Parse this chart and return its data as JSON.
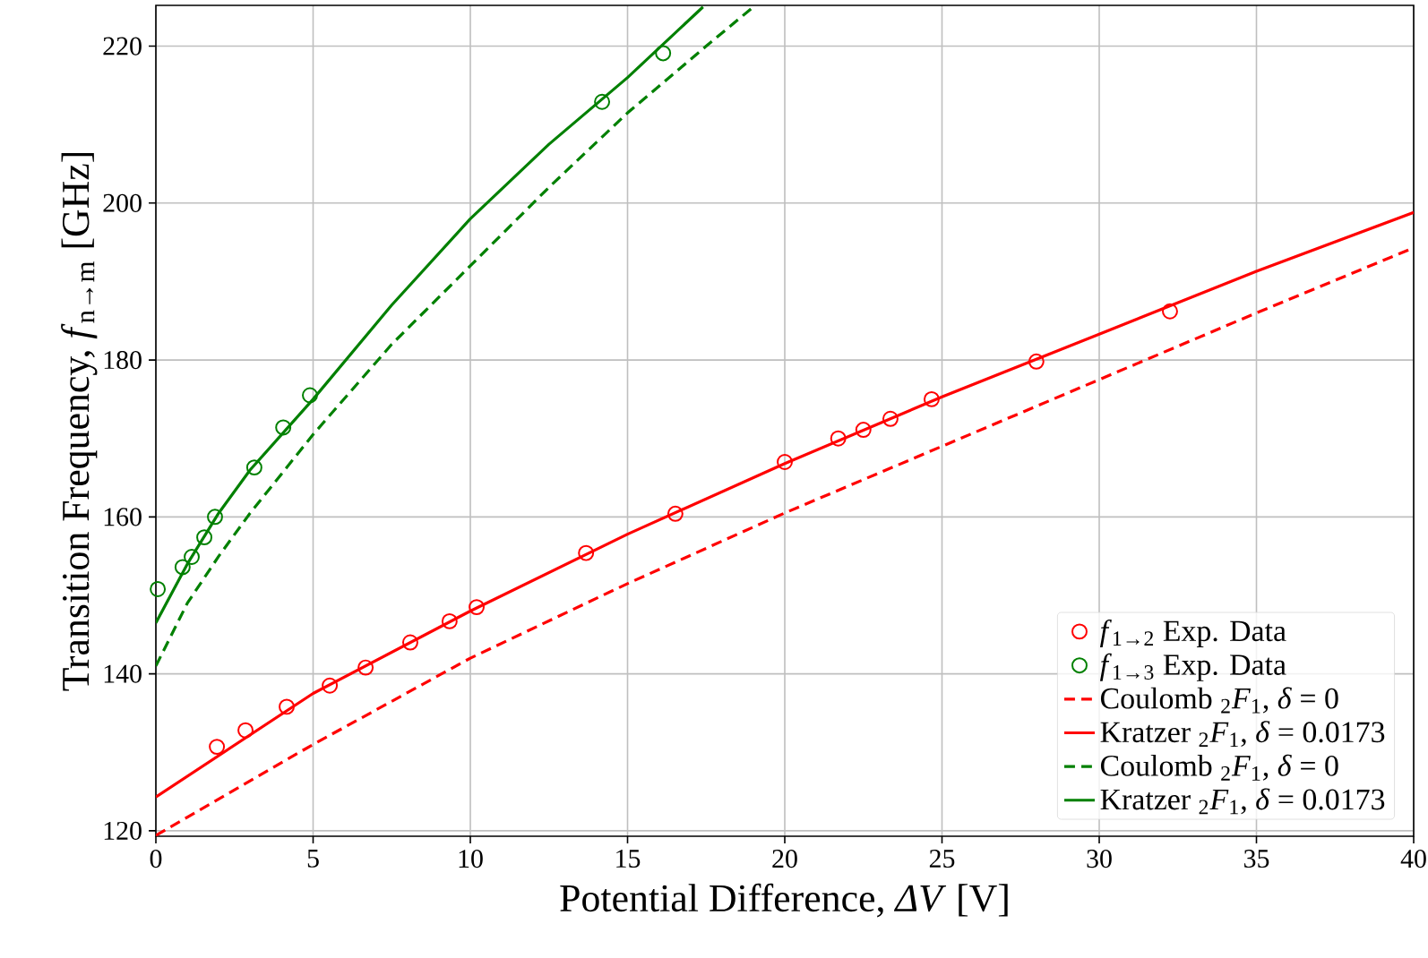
{
  "chart_data": {
    "type": "line",
    "xlabel": "Potential Difference, *ΔV* [V]",
    "ylabel": "Transition Frequency, *f*$_{n→m}$ [GHz]",
    "xlim": [
      0,
      40
    ],
    "ylim": [
      119.3,
      225.2
    ],
    "xticks": [
      0,
      5,
      10,
      15,
      20,
      25,
      30,
      35,
      40
    ],
    "yticks": [
      120,
      140,
      160,
      180,
      200,
      220
    ],
    "grid": true,
    "legend": "bottom right",
    "series": [
      {
        "name": "*f*$_{1→2}$ Exp. Data",
        "type": "scatter",
        "marker": "circle",
        "color": "#ff0000",
        "x": [
          1.94,
          2.85,
          4.16,
          5.53,
          6.67,
          8.09,
          9.34,
          10.2,
          13.68,
          16.52,
          20.0,
          21.7,
          22.5,
          23.36,
          24.67,
          28.0,
          32.25
        ],
        "values": [
          130.7,
          132.8,
          135.8,
          138.5,
          140.8,
          144.0,
          146.7,
          148.5,
          155.4,
          160.4,
          167.0,
          170.0,
          171.1,
          172.5,
          175.0,
          179.8,
          186.2
        ]
      },
      {
        "name": "*f*$_{1→3}$ Exp. Data",
        "type": "scatter",
        "marker": "circle",
        "color": "#008000",
        "x": [
          0.06,
          0.85,
          1.14,
          1.54,
          1.88,
          3.13,
          4.05,
          4.9,
          14.19,
          16.13
        ],
        "values": [
          150.8,
          153.6,
          154.9,
          157.4,
          160.0,
          166.3,
          171.4,
          175.5,
          212.9,
          219.1
        ]
      },
      {
        "name": "Coulomb $_{2}$*F*$_{1}$,  *δ* = 0",
        "type": "line",
        "line_style": "dashed",
        "color": "#ff0000",
        "x": [
          0,
          5,
          10,
          15,
          20,
          25,
          30,
          35,
          40
        ],
        "values": [
          119.4,
          131,
          142,
          151.5,
          160.5,
          169,
          177.5,
          186,
          194.3
        ]
      },
      {
        "name": "Kratzer $_{2}$*F*$_{1}$,  *δ* = 0.0173",
        "type": "line",
        "line_style": "solid",
        "color": "#ff0000",
        "x": [
          0,
          5,
          10,
          15,
          20,
          25,
          30,
          35,
          40
        ],
        "values": [
          124.3,
          137.5,
          148,
          157.8,
          166.8,
          175.3,
          183.3,
          191.3,
          198.8
        ]
      },
      {
        "name": "Coulomb $_{2}$*F*$_{1}$,  *δ* = 0",
        "type": "line",
        "line_style": "dashed",
        "color": "#008000",
        "x": [
          0,
          1,
          2,
          3,
          5,
          7.5,
          10,
          12.5,
          15,
          17.5,
          19
        ],
        "values": [
          141,
          149,
          155,
          160.5,
          170.5,
          182,
          192,
          202,
          211.5,
          220,
          225
        ]
      },
      {
        "name": "Kratzer $_{2}$*F*$_{1}$,  *δ* = 0.0173",
        "type": "line",
        "line_style": "solid",
        "color": "#008000",
        "x": [
          0,
          1,
          2,
          3,
          5,
          7.5,
          10,
          12.5,
          15,
          17.4
        ],
        "values": [
          146.5,
          154,
          160.5,
          166,
          175,
          187,
          198,
          207.5,
          216,
          225
        ]
      }
    ]
  }
}
